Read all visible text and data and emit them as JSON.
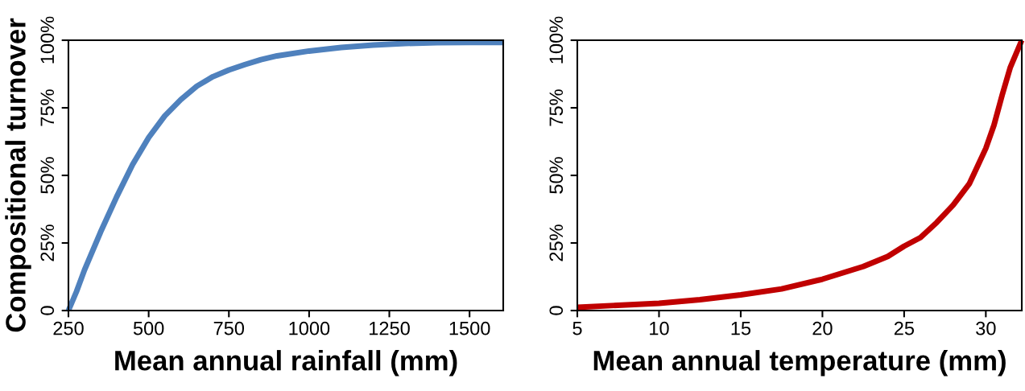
{
  "chart_data": [
    {
      "type": "line",
      "xlabel": "Mean annual rainfall (mm)",
      "ylabel": "Compositional turnover",
      "x": [
        250,
        275,
        300,
        350,
        400,
        450,
        500,
        550,
        600,
        650,
        700,
        750,
        800,
        850,
        900,
        1000,
        1100,
        1200,
        1300,
        1400,
        1500,
        1605
      ],
      "series": [
        {
          "color": "#4f81bd",
          "values": [
            0,
            7,
            15,
            29,
            42,
            54,
            64,
            72,
            78,
            83,
            86.5,
            89,
            91,
            92.8,
            94.2,
            96,
            97.3,
            98.2,
            98.8,
            99.1,
            99.2,
            99.2
          ]
        }
      ],
      "xlim": [
        250,
        1605
      ],
      "xticks": [
        250,
        500,
        750,
        1000,
        1250,
        1500
      ],
      "ylim": [
        0,
        100
      ],
      "yticks": [
        0,
        {
          "value": 25,
          "label": "25%"
        },
        {
          "value": 50,
          "label": "50%"
        },
        {
          "value": 75,
          "label": "75%"
        },
        {
          "value": 100,
          "label": "100%"
        }
      ],
      "grid": false,
      "legend": false
    },
    {
      "type": "line",
      "xlabel": "Mean annual temperature (mm)",
      "x": [
        5,
        10,
        12.5,
        15,
        17.5,
        20,
        22.5,
        24,
        25,
        26,
        27,
        28,
        29,
        29.5,
        30,
        30.5,
        31,
        31.5,
        32.2
      ],
      "series": [
        {
          "color": "#c00000",
          "values": [
            1.2,
            2.7,
            4,
            5.8,
            8,
            11.6,
            16.3,
            20,
            23.8,
            27,
            32.6,
            39,
            47,
            53.5,
            60,
            68.6,
            79.7,
            90,
            100
          ]
        }
      ],
      "xlim": [
        5,
        32.2
      ],
      "xticks": [
        5,
        10,
        15,
        20,
        25,
        30
      ],
      "ylim": [
        0,
        100
      ],
      "yticks": [
        0,
        {
          "value": 25,
          "label": "25%"
        },
        {
          "value": 50,
          "label": "50%"
        },
        {
          "value": 75,
          "label": "75%"
        },
        {
          "value": 100,
          "label": "100%"
        }
      ],
      "grid": false,
      "legend": false
    }
  ]
}
